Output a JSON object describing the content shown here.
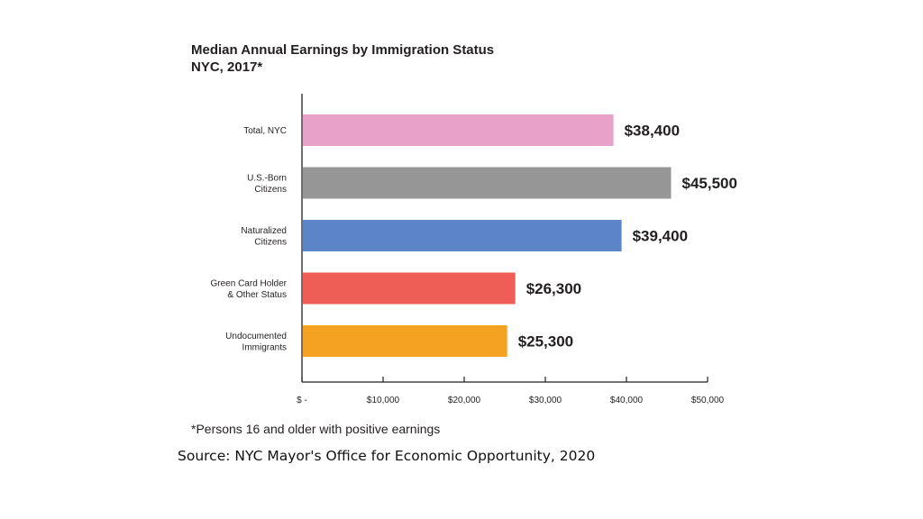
{
  "chart_data": {
    "type": "bar",
    "orientation": "horizontal",
    "title": "Median Annual Earnings by Immigration Status",
    "subtitle": "NYC, 2017*",
    "categories": [
      [
        "Total, NYC"
      ],
      [
        "U.S.-Born",
        "Citizens"
      ],
      [
        "Naturalized",
        "Citizens"
      ],
      [
        "Green Card Holder",
        "& Other Status"
      ],
      [
        "Undocumented",
        "Immigrants"
      ]
    ],
    "values": [
      38400,
      45500,
      39400,
      26300,
      25300
    ],
    "value_labels": [
      "$38,400",
      "$45,500",
      "$39,400",
      "$26,300",
      "$25,300"
    ],
    "colors": [
      "#e8a2c9",
      "#969696",
      "#5b85c6",
      "#ef5d57",
      "#f5a223"
    ],
    "x_ticks": [
      0,
      10000,
      20000,
      30000,
      40000,
      50000
    ],
    "x_tick_labels": [
      "$ -",
      "$10,000",
      "$20,000",
      "$30,000",
      "$40,000",
      "$50,000"
    ],
    "xlim": [
      0,
      50000
    ],
    "xlabel": "",
    "ylabel": "",
    "grid": false,
    "legend": "none"
  },
  "footnote": "*Persons 16 and older with positive earnings",
  "source": "Source: NYC Mayor's Office for Economic Opportunity, 2020"
}
